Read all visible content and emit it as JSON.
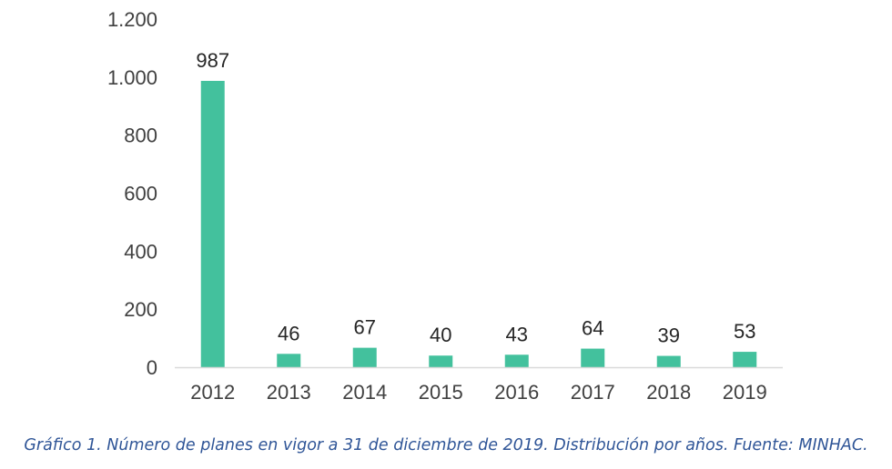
{
  "chart_data": {
    "type": "bar",
    "categories": [
      "2012",
      "2013",
      "2014",
      "2015",
      "2016",
      "2017",
      "2018",
      "2019"
    ],
    "values": [
      987,
      46,
      67,
      40,
      43,
      64,
      39,
      53
    ],
    "data_labels": [
      "987",
      "46",
      "67",
      "40",
      "43",
      "64",
      "39",
      "53"
    ],
    "y_ticks": [
      0,
      200,
      400,
      600,
      800,
      1000,
      1200
    ],
    "y_tick_labels": [
      "0",
      "200",
      "400",
      "600",
      "800",
      "1.000",
      "1.200"
    ],
    "ylim": [
      0,
      1200
    ],
    "grid": false,
    "legend": "none",
    "title": "",
    "xlabel": "",
    "ylabel": ""
  },
  "colors": {
    "bar": "#43c19d",
    "axis": "#d9d9d9",
    "caption": "#2f5597"
  },
  "caption": "Gráfico 1. Número de planes en vigor a 31 de diciembre de 2019. Distribución por años. Fuente: MINHAC."
}
